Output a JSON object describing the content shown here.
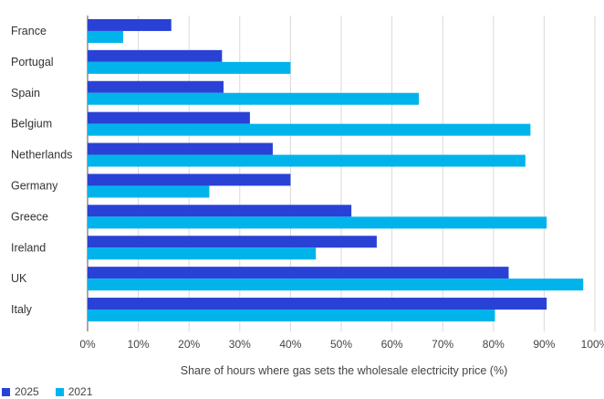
{
  "chart_data": {
    "type": "bar",
    "orientation": "horizontal",
    "categories": [
      "France",
      "Portugal",
      "Spain",
      "Belgium",
      "Netherlands",
      "Germany",
      "Greece",
      "Ireland",
      "UK",
      "Italy"
    ],
    "series": [
      {
        "name": "2025",
        "color": "#2a41d6",
        "values": [
          16.5,
          26.5,
          26.8,
          32,
          36.5,
          40,
          52,
          57,
          83,
          90.5
        ]
      },
      {
        "name": "2021",
        "color": "#00b4eb",
        "values": [
          7,
          40,
          65.3,
          87.3,
          86.3,
          24,
          90.5,
          45,
          97.7,
          80.3
        ]
      }
    ],
    "xlim": [
      0,
      100
    ],
    "xticks": [
      "0%",
      "10%",
      "20%",
      "30%",
      "40%",
      "50%",
      "60%",
      "70%",
      "80%",
      "90%",
      "100%"
    ],
    "xlabel": "Share of hours where gas sets the wholesale electricity price (%)",
    "grid": "vertical",
    "legend_placement": "bottom-left"
  }
}
